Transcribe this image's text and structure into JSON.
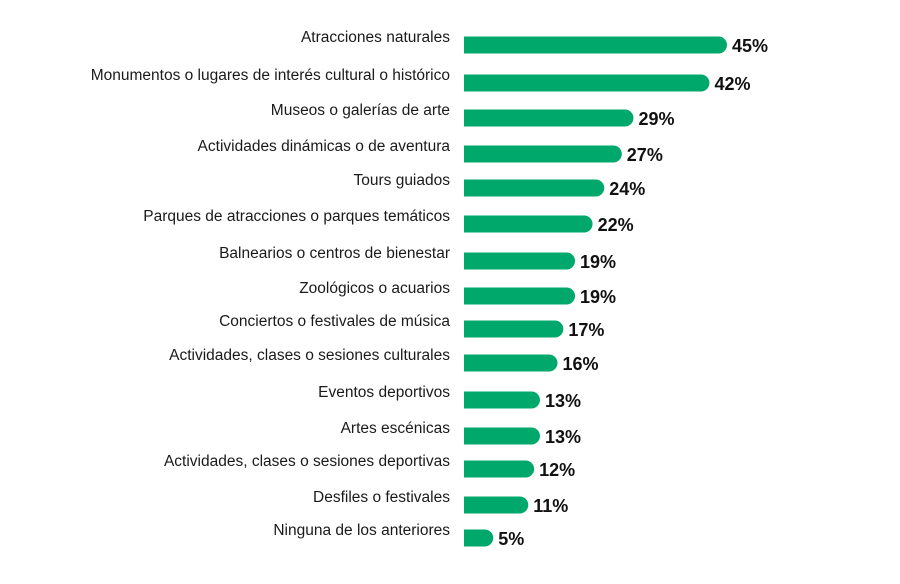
{
  "chart_data": {
    "type": "bar",
    "orientation": "horizontal",
    "categories": [
      "Atracciones naturales",
      "Monumentos o lugares de interés cultural o histórico",
      "Museos o galerías de arte",
      "Actividades dinámicas o de aventura",
      "Tours guiados",
      "Parques de atracciones o parques temáticos",
      "Balnearios o centros de bienestar",
      "Zoológicos o acuarios",
      "Conciertos o festivales de música",
      "Actividades, clases o sesiones culturales",
      "Eventos deportivos",
      "Artes escénicas",
      "Actividades, clases o sesiones deportivas",
      "Desfiles o festivales",
      "Ninguna de los anteriores"
    ],
    "values": [
      45,
      42,
      29,
      27,
      24,
      22,
      19,
      19,
      17,
      16,
      13,
      13,
      12,
      11,
      5
    ],
    "value_labels": [
      "45%",
      "42%",
      "29%",
      "27%",
      "24%",
      "22%",
      "19%",
      "19%",
      "17%",
      "16%",
      "13%",
      "13%",
      "12%",
      "11%",
      "5%"
    ],
    "unit": "%",
    "xlim": [
      0,
      45
    ],
    "title": "",
    "xlabel": "",
    "ylabel": "",
    "grid": false,
    "legend": "none",
    "bar_color": "#00a86b"
  }
}
